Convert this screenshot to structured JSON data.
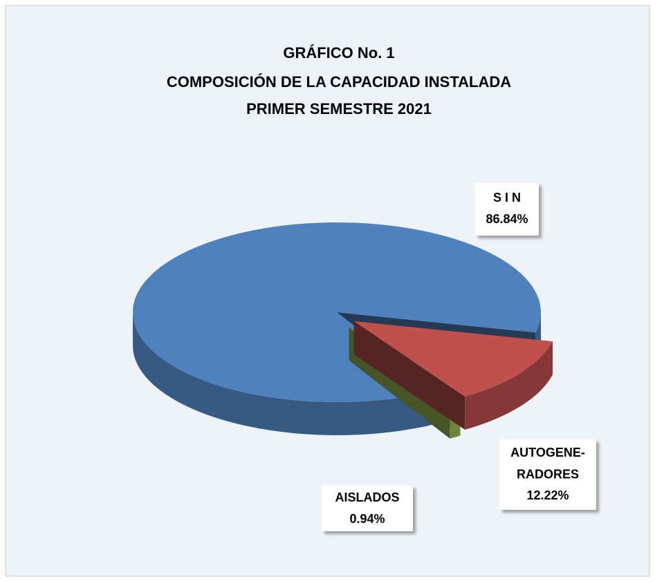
{
  "chart_data": {
    "type": "pie3d",
    "title": [
      "GRÁFICO No. 1",
      "COMPOSICIÓN DE LA CAPACIDAD INSTALADA",
      "PRIMER  SEMESTRE  2021"
    ],
    "categories": [
      "S I N",
      "AUTOGENE-\nRADORES",
      "AISLADOS"
    ],
    "values": [
      86.84,
      12.22,
      0.94
    ],
    "value_labels": [
      "86.84%",
      "12.22%",
      "0.94%"
    ],
    "colors": [
      "#4f81bd",
      "#c0504d",
      "#9bbb59"
    ]
  }
}
